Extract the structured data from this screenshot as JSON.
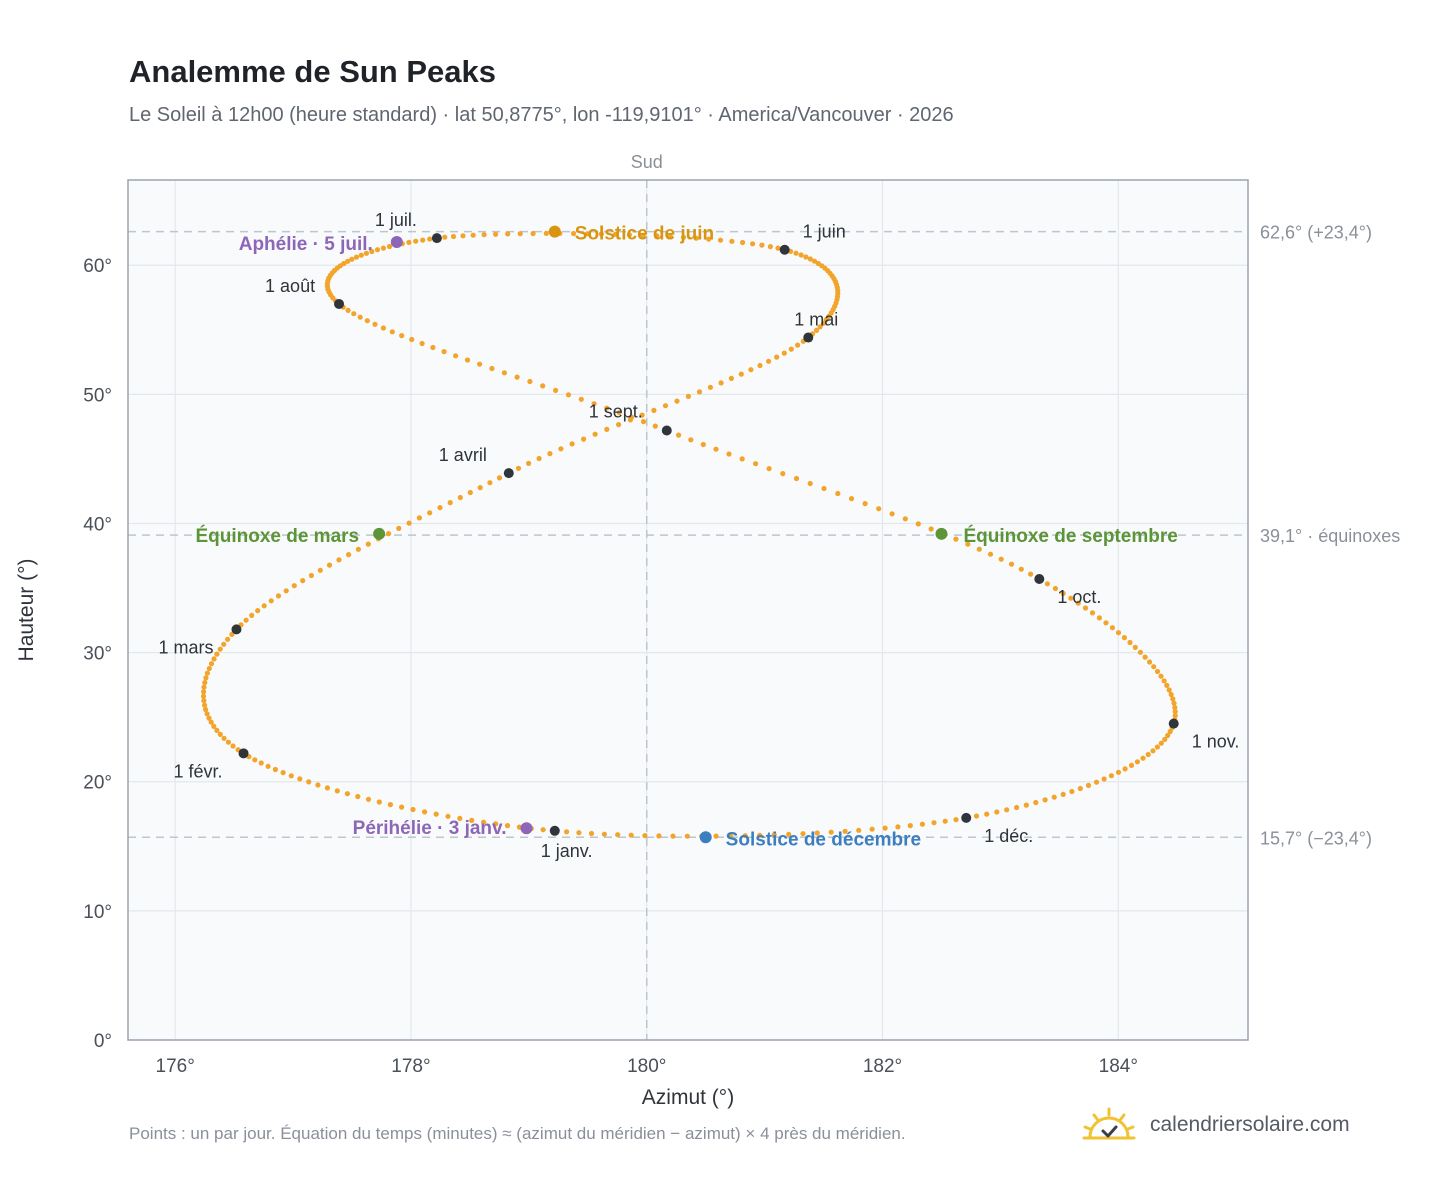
{
  "header": {
    "title": "Analemme de Sun Peaks",
    "subtitle": "Le Soleil à 12h00 (heure standard) · lat 50,8775°, lon -119,9101° · America/Vancouver · 2026"
  },
  "footer": {
    "note": "Points : un par jour. Équation du temps (minutes) ≈ (azimut du méridien − azimut) × 4 près du méridien.",
    "brand": "calendriersolaire.com",
    "brand_icon": "sun-icon"
  },
  "colors": {
    "curve": "#f2a42b",
    "month_marker": "#30343b",
    "solstice_june": "#d8950f",
    "solstice_december": "#3d7ec1",
    "equinox": "#5c9438",
    "apsis": "#8e66b8",
    "grid": "#e4e8ed",
    "reference": "#bcc6cf",
    "plot_bg": "#f8fafc",
    "frame": "#9aa4b1"
  },
  "chart_data": {
    "type": "scatter",
    "xlabel": "Azimut (°)",
    "ylabel": "Hauteur (°)",
    "south_label": "Sud",
    "xlim": [
      175.6,
      185.1
    ],
    "ylim": [
      0,
      66.6
    ],
    "x_ticks": [
      176,
      178,
      180,
      182,
      184
    ],
    "x_tick_labels": [
      "176°",
      "178°",
      "180°",
      "182°",
      "184°"
    ],
    "y_ticks": [
      0,
      10,
      20,
      30,
      40,
      50,
      60
    ],
    "y_tick_labels": [
      "0°",
      "10°",
      "20°",
      "30°",
      "40°",
      "50°",
      "60°"
    ],
    "grid": true,
    "reference_lines": {
      "meridian_azimuth": 180,
      "altitudes": [
        {
          "value": 62.6,
          "label": "62,6° (+23,4°)"
        },
        {
          "value": 39.1,
          "label": "39,1° · équinoxes"
        },
        {
          "value": 15.7,
          "label": "15,7° (−23,4°)"
        }
      ]
    },
    "month_markers": [
      {
        "label": "1 janv.",
        "azimuth": 179.22,
        "altitude": 16.2
      },
      {
        "label": "1 févr.",
        "azimuth": 176.58,
        "altitude": 22.2
      },
      {
        "label": "1 mars",
        "azimuth": 176.52,
        "altitude": 31.8
      },
      {
        "label": "1 avril",
        "azimuth": 178.83,
        "altitude": 43.9
      },
      {
        "label": "1 mai",
        "azimuth": 181.37,
        "altitude": 54.4
      },
      {
        "label": "1 juin",
        "azimuth": 181.17,
        "altitude": 61.2
      },
      {
        "label": "1 juil.",
        "azimuth": 178.22,
        "altitude": 62.1
      },
      {
        "label": "1 août",
        "azimuth": 177.39,
        "altitude": 57.0
      },
      {
        "label": "1 sept.",
        "azimuth": 180.17,
        "altitude": 47.2
      },
      {
        "label": "1 oct.",
        "azimuth": 183.33,
        "altitude": 35.7
      },
      {
        "label": "1 nov.",
        "azimuth": 184.47,
        "altitude": 24.5
      },
      {
        "label": "1 déc.",
        "azimuth": 182.71,
        "altitude": 17.2
      }
    ],
    "events": [
      {
        "label": "Solstice de juin",
        "azimuth": 179.22,
        "altitude": 62.6,
        "kind": "solstice_june"
      },
      {
        "label": "Solstice de décembre",
        "azimuth": 180.5,
        "altitude": 15.7,
        "kind": "solstice_december"
      },
      {
        "label": "Équinoxe de mars",
        "azimuth": 177.73,
        "altitude": 39.2,
        "kind": "equinox"
      },
      {
        "label": "Équinoxe de septembre",
        "azimuth": 182.5,
        "altitude": 39.2,
        "kind": "equinox"
      },
      {
        "label": "Périhélie · 3 janv.",
        "azimuth": 178.98,
        "altitude": 16.4,
        "kind": "apsis"
      },
      {
        "label": "Aphélie · 5 juil.",
        "azimuth": 177.88,
        "altitude": 61.8,
        "kind": "apsis"
      }
    ]
  }
}
